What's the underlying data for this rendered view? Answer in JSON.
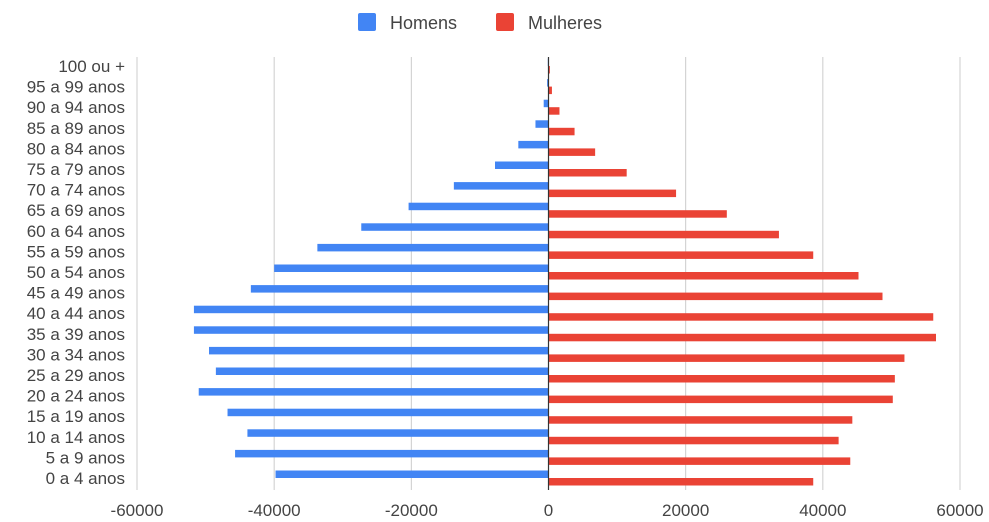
{
  "chart_data": {
    "type": "bar",
    "orientation": "horizontal",
    "title": "",
    "xlabel": "",
    "ylabel": "",
    "categories": [
      "0 a 4 anos",
      "5 a 9 anos",
      "10 a 14 anos",
      "15 a 19 anos",
      "20 a 24 anos",
      "25 a 29 anos",
      "30 a 34 anos",
      "35 a 39 anos",
      "40 a 44 anos",
      "45 a 49 anos",
      "50 a 54 anos",
      "55 a 59 anos",
      "60 a 64 anos",
      "65 a 69 anos",
      "70 a 74 anos",
      "75 a 79 anos",
      "80 a 84 anos",
      "85 a 89 anos",
      "90 a 94 anos",
      "95 a 99 anos",
      "100 ou +"
    ],
    "series": [
      {
        "name": "Homens",
        "color": "#4285f4",
        "values": [
          -39800,
          -45700,
          -43900,
          -46800,
          -51000,
          -48500,
          -49500,
          -51700,
          -51700,
          -43400,
          -40000,
          -33700,
          -27300,
          -20400,
          -13800,
          -7800,
          -4400,
          -1900,
          -700,
          -200,
          -100
        ]
      },
      {
        "name": "Mulheres",
        "color": "#ea4335",
        "values": [
          38600,
          44000,
          42300,
          44300,
          50200,
          50500,
          51900,
          56500,
          56100,
          48700,
          45200,
          38600,
          33600,
          26000,
          18600,
          11400,
          6800,
          3800,
          1600,
          500,
          200
        ]
      }
    ],
    "xlim": [
      -60000,
      60000
    ],
    "xticks": [
      -60000,
      -40000,
      -20000,
      0,
      20000,
      40000,
      60000
    ],
    "xtick_labels": [
      "-60000",
      "-40000",
      "-20000",
      "0",
      "20000",
      "40000",
      "60000"
    ],
    "grid": true,
    "legend_position": "top"
  }
}
